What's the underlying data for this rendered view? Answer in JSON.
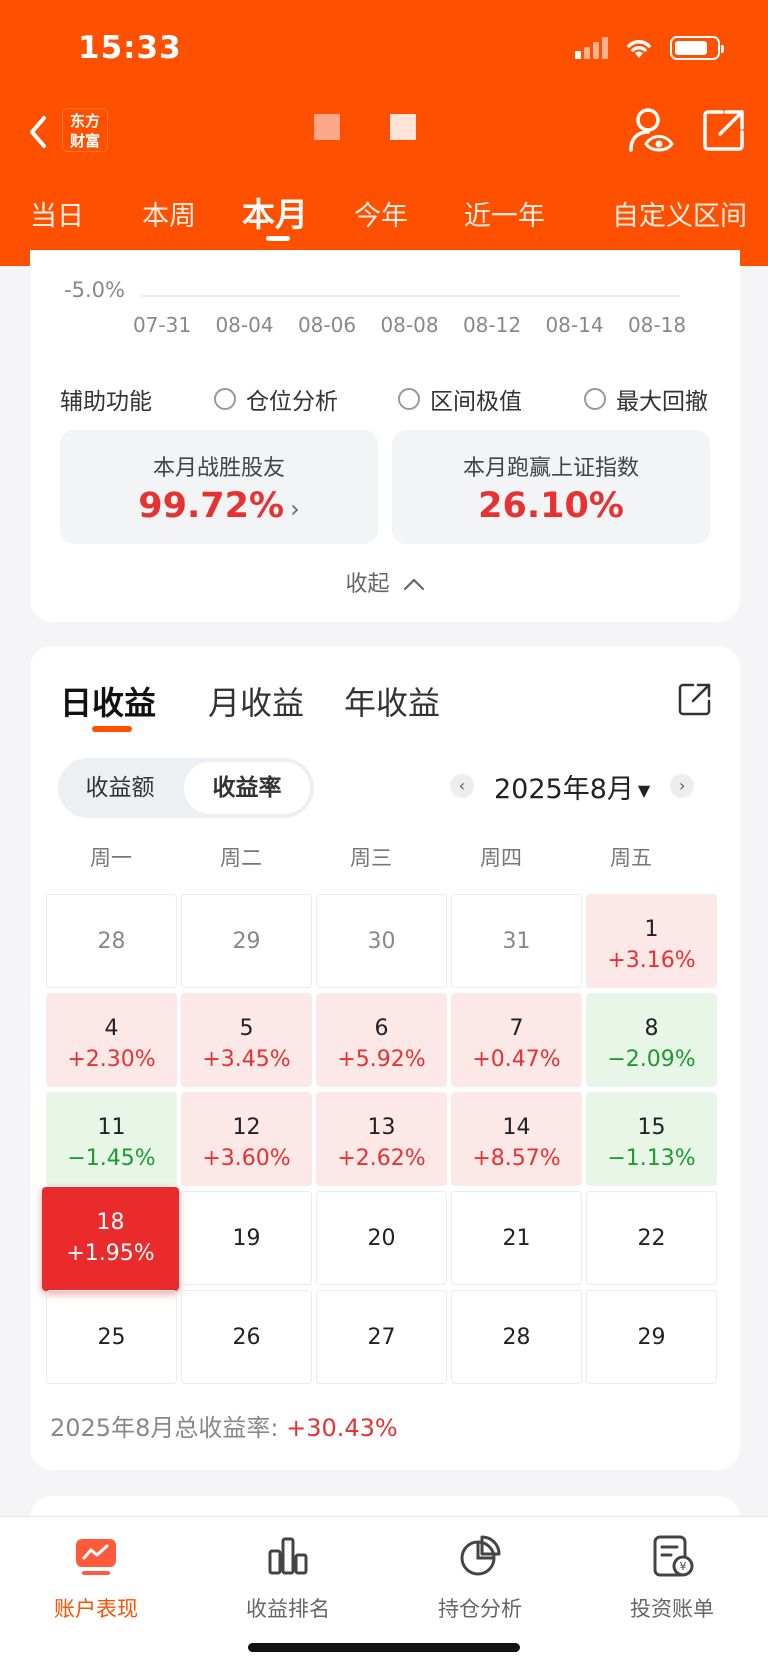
{
  "status_bar": {
    "time": "15:33"
  },
  "header": {
    "brand": "东方财富"
  },
  "period_tabs": [
    {
      "label": "当日",
      "active": false
    },
    {
      "label": "本周",
      "active": false
    },
    {
      "label": "本月",
      "active": true
    },
    {
      "label": "今年",
      "active": false
    },
    {
      "label": "近一年",
      "active": false
    },
    {
      "label": "自定义区间",
      "active": false
    }
  ],
  "chart": {
    "y_tick": "-5.0%",
    "x_ticks": [
      "07-31",
      "08-04",
      "08-06",
      "08-08",
      "08-12",
      "08-14",
      "08-18"
    ]
  },
  "aux": {
    "label": "辅助功能",
    "options": [
      "仓位分析",
      "区间极值",
      "最大回撤"
    ]
  },
  "stats": [
    {
      "title": "本月战胜股友",
      "value": "99.72%",
      "arrow": "›"
    },
    {
      "title": "本月跑赢上证指数",
      "value": "26.10%"
    }
  ],
  "collapse_label": "收起",
  "returns": {
    "tabs": [
      "日收益",
      "月收益",
      "年收益"
    ],
    "active_tab": 0,
    "toggle": [
      "收益额",
      "收益率"
    ],
    "toggle_selected": 1,
    "month": "2025年8月",
    "prev": "‹",
    "next": "›",
    "weekdays": [
      "周一",
      "周二",
      "周三",
      "周四",
      "周五"
    ],
    "calendar": [
      [
        {
          "d": "28",
          "t": "gray"
        },
        {
          "d": "29",
          "t": "gray"
        },
        {
          "d": "30",
          "t": "gray"
        },
        {
          "d": "31",
          "t": "gray"
        },
        {
          "d": "1",
          "p": "+3.16%",
          "t": "up"
        }
      ],
      [
        {
          "d": "4",
          "p": "+2.30%",
          "t": "up"
        },
        {
          "d": "5",
          "p": "+3.45%",
          "t": "up"
        },
        {
          "d": "6",
          "p": "+5.92%",
          "t": "up"
        },
        {
          "d": "7",
          "p": "+0.47%",
          "t": "up"
        },
        {
          "d": "8",
          "p": "−2.09%",
          "t": "down"
        }
      ],
      [
        {
          "d": "11",
          "p": "−1.45%",
          "t": "down"
        },
        {
          "d": "12",
          "p": "+3.60%",
          "t": "up"
        },
        {
          "d": "13",
          "p": "+2.62%",
          "t": "up"
        },
        {
          "d": "14",
          "p": "+8.57%",
          "t": "up"
        },
        {
          "d": "15",
          "p": "−1.13%",
          "t": "down"
        }
      ],
      [
        {
          "d": "18",
          "p": "+1.95%",
          "t": "today"
        },
        {
          "d": "19",
          "t": "only"
        },
        {
          "d": "20",
          "t": "only"
        },
        {
          "d": "21",
          "t": "only"
        },
        {
          "d": "22",
          "t": "only"
        }
      ],
      [
        {
          "d": "25",
          "t": "only"
        },
        {
          "d": "26",
          "t": "only"
        },
        {
          "d": "27",
          "t": "only"
        },
        {
          "d": "28",
          "t": "only"
        },
        {
          "d": "29",
          "t": "only"
        }
      ]
    ],
    "total_label": "2025年8月总收益率:",
    "total_value": "+30.43%"
  },
  "bottom_nav": [
    {
      "label": "账户表现",
      "icon": "chart-trend-icon",
      "active": true
    },
    {
      "label": "收益排名",
      "icon": "bar-chart-icon",
      "active": false
    },
    {
      "label": "持仓分析",
      "icon": "pie-chart-icon",
      "active": false
    },
    {
      "label": "投资账单",
      "icon": "bill-icon",
      "active": false
    }
  ],
  "colors": {
    "brand": "#ff5000",
    "up": "#e63232",
    "down": "#1c9b2e"
  }
}
